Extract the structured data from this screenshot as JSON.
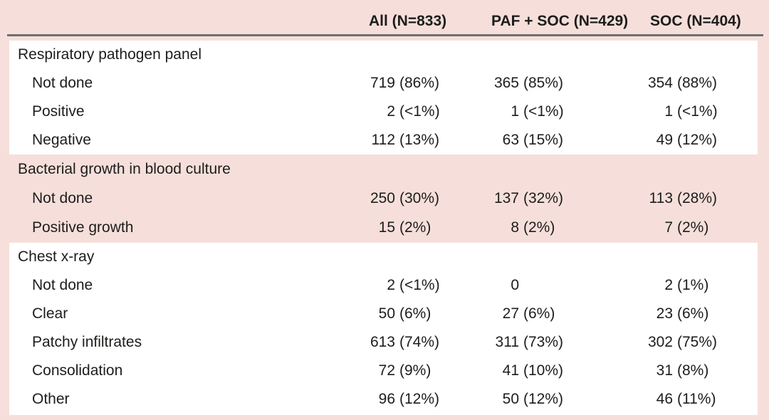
{
  "colors": {
    "background_pink": "#f6dfdb",
    "section_white": "#ffffff",
    "rule_gray": "#6e6e6e",
    "text": "#1d1d1b"
  },
  "table": {
    "columns": [
      {
        "label": "All (N=833)"
      },
      {
        "label": "PAF + SOC (N=429)"
      },
      {
        "label": "SOC (N=404)"
      }
    ],
    "sections": [
      {
        "label": "Respiratory pathogen panel",
        "rows": [
          {
            "label": "Not done",
            "values": [
              {
                "num": "719",
                "pct": "(86%)"
              },
              {
                "num": "365",
                "pct": "(85%)"
              },
              {
                "num": "354",
                "pct": "(88%)"
              }
            ]
          },
          {
            "label": "Positive",
            "values": [
              {
                "num": "2",
                "pct": "(<1%)"
              },
              {
                "num": "1",
                "pct": "(<1%)"
              },
              {
                "num": "1",
                "pct": "(<1%)"
              }
            ]
          },
          {
            "label": "Negative",
            "values": [
              {
                "num": "112",
                "pct": "(13%)"
              },
              {
                "num": "63",
                "pct": "(15%)"
              },
              {
                "num": "49",
                "pct": "(12%)"
              }
            ]
          }
        ]
      },
      {
        "label": "Bacterial growth in blood culture",
        "rows": [
          {
            "label": "Not done",
            "values": [
              {
                "num": "250",
                "pct": "(30%)"
              },
              {
                "num": "137",
                "pct": "(32%)"
              },
              {
                "num": "113",
                "pct": "(28%)"
              }
            ]
          },
          {
            "label": "Positive growth",
            "values": [
              {
                "num": "15",
                "pct": "(2%)"
              },
              {
                "num": "8",
                "pct": "(2%)"
              },
              {
                "num": "7",
                "pct": "(2%)"
              }
            ]
          }
        ]
      },
      {
        "label": "Chest x-ray",
        "rows": [
          {
            "label": "Not done",
            "values": [
              {
                "num": "2",
                "pct": "(<1%)"
              },
              {
                "num": "0",
                "pct": ""
              },
              {
                "num": "2",
                "pct": "(1%)"
              }
            ]
          },
          {
            "label": "Clear",
            "values": [
              {
                "num": "50",
                "pct": "(6%)"
              },
              {
                "num": "27",
                "pct": "(6%)"
              },
              {
                "num": "23",
                "pct": "(6%)"
              }
            ]
          },
          {
            "label": "Patchy infiltrates",
            "values": [
              {
                "num": "613",
                "pct": "(74%)"
              },
              {
                "num": "311",
                "pct": "(73%)"
              },
              {
                "num": "302",
                "pct": "(75%)"
              }
            ]
          },
          {
            "label": "Consolidation",
            "values": [
              {
                "num": "72",
                "pct": "(9%)"
              },
              {
                "num": "41",
                "pct": "(10%)"
              },
              {
                "num": "31",
                "pct": "(8%)"
              }
            ]
          },
          {
            "label": "Other",
            "values": [
              {
                "num": "96",
                "pct": "(12%)"
              },
              {
                "num": "50",
                "pct": "(12%)"
              },
              {
                "num": "46",
                "pct": "(11%)"
              }
            ]
          }
        ]
      }
    ]
  }
}
